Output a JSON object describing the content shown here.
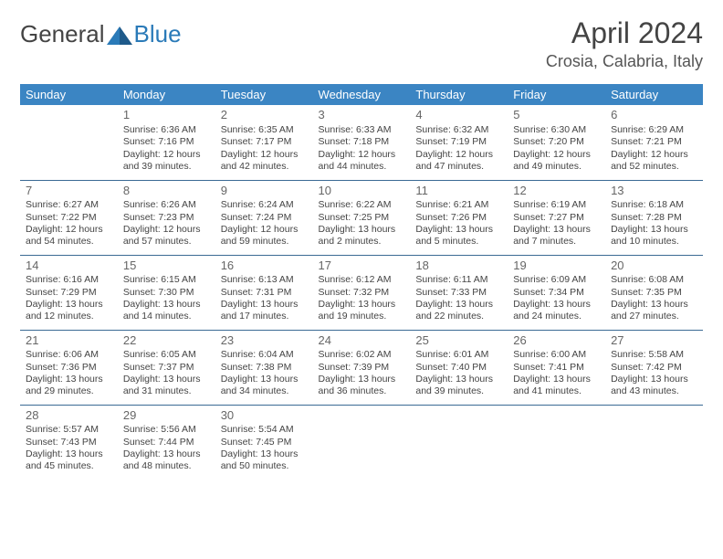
{
  "logo": {
    "part1": "General",
    "part2": "Blue"
  },
  "title": "April 2024",
  "subtitle": "Crosia, Calabria, Italy",
  "colors": {
    "header_bg": "#3b85c3",
    "header_text": "#ffffff",
    "row_border": "#3b6a94",
    "title_color": "#444444",
    "logo_blue": "#2a7ab8"
  },
  "day_headers": [
    "Sunday",
    "Monday",
    "Tuesday",
    "Wednesday",
    "Thursday",
    "Friday",
    "Saturday"
  ],
  "weeks": [
    [
      null,
      {
        "n": "1",
        "sr": "6:36 AM",
        "ss": "7:16 PM",
        "dl1": "12 hours",
        "dl2": "and 39 minutes."
      },
      {
        "n": "2",
        "sr": "6:35 AM",
        "ss": "7:17 PM",
        "dl1": "12 hours",
        "dl2": "and 42 minutes."
      },
      {
        "n": "3",
        "sr": "6:33 AM",
        "ss": "7:18 PM",
        "dl1": "12 hours",
        "dl2": "and 44 minutes."
      },
      {
        "n": "4",
        "sr": "6:32 AM",
        "ss": "7:19 PM",
        "dl1": "12 hours",
        "dl2": "and 47 minutes."
      },
      {
        "n": "5",
        "sr": "6:30 AM",
        "ss": "7:20 PM",
        "dl1": "12 hours",
        "dl2": "and 49 minutes."
      },
      {
        "n": "6",
        "sr": "6:29 AM",
        "ss": "7:21 PM",
        "dl1": "12 hours",
        "dl2": "and 52 minutes."
      }
    ],
    [
      {
        "n": "7",
        "sr": "6:27 AM",
        "ss": "7:22 PM",
        "dl1": "12 hours",
        "dl2": "and 54 minutes."
      },
      {
        "n": "8",
        "sr": "6:26 AM",
        "ss": "7:23 PM",
        "dl1": "12 hours",
        "dl2": "and 57 minutes."
      },
      {
        "n": "9",
        "sr": "6:24 AM",
        "ss": "7:24 PM",
        "dl1": "12 hours",
        "dl2": "and 59 minutes."
      },
      {
        "n": "10",
        "sr": "6:22 AM",
        "ss": "7:25 PM",
        "dl1": "13 hours",
        "dl2": "and 2 minutes."
      },
      {
        "n": "11",
        "sr": "6:21 AM",
        "ss": "7:26 PM",
        "dl1": "13 hours",
        "dl2": "and 5 minutes."
      },
      {
        "n": "12",
        "sr": "6:19 AM",
        "ss": "7:27 PM",
        "dl1": "13 hours",
        "dl2": "and 7 minutes."
      },
      {
        "n": "13",
        "sr": "6:18 AM",
        "ss": "7:28 PM",
        "dl1": "13 hours",
        "dl2": "and 10 minutes."
      }
    ],
    [
      {
        "n": "14",
        "sr": "6:16 AM",
        "ss": "7:29 PM",
        "dl1": "13 hours",
        "dl2": "and 12 minutes."
      },
      {
        "n": "15",
        "sr": "6:15 AM",
        "ss": "7:30 PM",
        "dl1": "13 hours",
        "dl2": "and 14 minutes."
      },
      {
        "n": "16",
        "sr": "6:13 AM",
        "ss": "7:31 PM",
        "dl1": "13 hours",
        "dl2": "and 17 minutes."
      },
      {
        "n": "17",
        "sr": "6:12 AM",
        "ss": "7:32 PM",
        "dl1": "13 hours",
        "dl2": "and 19 minutes."
      },
      {
        "n": "18",
        "sr": "6:11 AM",
        "ss": "7:33 PM",
        "dl1": "13 hours",
        "dl2": "and 22 minutes."
      },
      {
        "n": "19",
        "sr": "6:09 AM",
        "ss": "7:34 PM",
        "dl1": "13 hours",
        "dl2": "and 24 minutes."
      },
      {
        "n": "20",
        "sr": "6:08 AM",
        "ss": "7:35 PM",
        "dl1": "13 hours",
        "dl2": "and 27 minutes."
      }
    ],
    [
      {
        "n": "21",
        "sr": "6:06 AM",
        "ss": "7:36 PM",
        "dl1": "13 hours",
        "dl2": "and 29 minutes."
      },
      {
        "n": "22",
        "sr": "6:05 AM",
        "ss": "7:37 PM",
        "dl1": "13 hours",
        "dl2": "and 31 minutes."
      },
      {
        "n": "23",
        "sr": "6:04 AM",
        "ss": "7:38 PM",
        "dl1": "13 hours",
        "dl2": "and 34 minutes."
      },
      {
        "n": "24",
        "sr": "6:02 AM",
        "ss": "7:39 PM",
        "dl1": "13 hours",
        "dl2": "and 36 minutes."
      },
      {
        "n": "25",
        "sr": "6:01 AM",
        "ss": "7:40 PM",
        "dl1": "13 hours",
        "dl2": "and 39 minutes."
      },
      {
        "n": "26",
        "sr": "6:00 AM",
        "ss": "7:41 PM",
        "dl1": "13 hours",
        "dl2": "and 41 minutes."
      },
      {
        "n": "27",
        "sr": "5:58 AM",
        "ss": "7:42 PM",
        "dl1": "13 hours",
        "dl2": "and 43 minutes."
      }
    ],
    [
      {
        "n": "28",
        "sr": "5:57 AM",
        "ss": "7:43 PM",
        "dl1": "13 hours",
        "dl2": "and 45 minutes."
      },
      {
        "n": "29",
        "sr": "5:56 AM",
        "ss": "7:44 PM",
        "dl1": "13 hours",
        "dl2": "and 48 minutes."
      },
      {
        "n": "30",
        "sr": "5:54 AM",
        "ss": "7:45 PM",
        "dl1": "13 hours",
        "dl2": "and 50 minutes."
      },
      null,
      null,
      null,
      null
    ]
  ],
  "labels": {
    "sunrise": "Sunrise: ",
    "sunset": "Sunset: ",
    "daylight": "Daylight: "
  }
}
